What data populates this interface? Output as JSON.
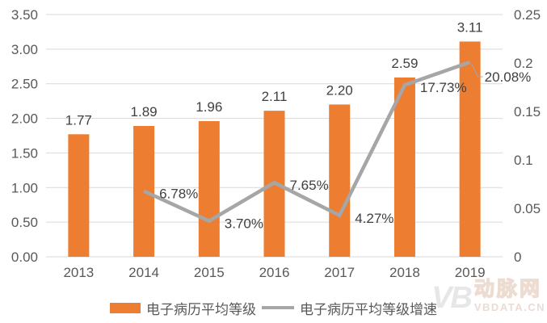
{
  "chart_data": {
    "type": "bar+line",
    "categories": [
      "2013",
      "2014",
      "2015",
      "2016",
      "2017",
      "2018",
      "2019"
    ],
    "series": [
      {
        "name": "电子病历平均等级",
        "type": "bar",
        "axis": "left",
        "values": [
          1.77,
          1.89,
          1.96,
          2.11,
          2.2,
          2.59,
          3.11
        ],
        "labels": [
          "1.77",
          "1.89",
          "1.96",
          "2.11",
          "2.20",
          "2.59",
          "3.11"
        ]
      },
      {
        "name": "电子病历平均等级增速",
        "type": "line",
        "axis": "right",
        "values": [
          null,
          0.0678,
          0.037,
          0.0765,
          0.0427,
          0.1773,
          0.2008
        ],
        "labels": [
          null,
          "6.78%",
          "3.70%",
          "7.65%",
          "4.27%",
          "17.73%",
          "20.08%"
        ]
      }
    ],
    "left_axis": {
      "min": 0,
      "max": 3.5,
      "step": 0.5,
      "ticks": [
        "3.50",
        "3.00",
        "2.50",
        "2.00",
        "1.50",
        "1.00",
        "0.50",
        "0.00"
      ]
    },
    "right_axis": {
      "min": 0,
      "max": 0.25,
      "step": 0.05,
      "ticks": [
        "0.25",
        "0.2",
        "0.15",
        "0.1",
        "0.05",
        "0"
      ]
    },
    "grid": true,
    "legend_position": "bottom",
    "title": "",
    "colors": {
      "bar": "#ED7D31",
      "line": "#A6A6A6",
      "gridline": "#D9D9D9",
      "axis_text": "#595959",
      "label_text": "#404040"
    }
  },
  "watermark": {
    "monogram": "VB",
    "brand": "动脉网",
    "domain": "VBDATA.CN"
  }
}
